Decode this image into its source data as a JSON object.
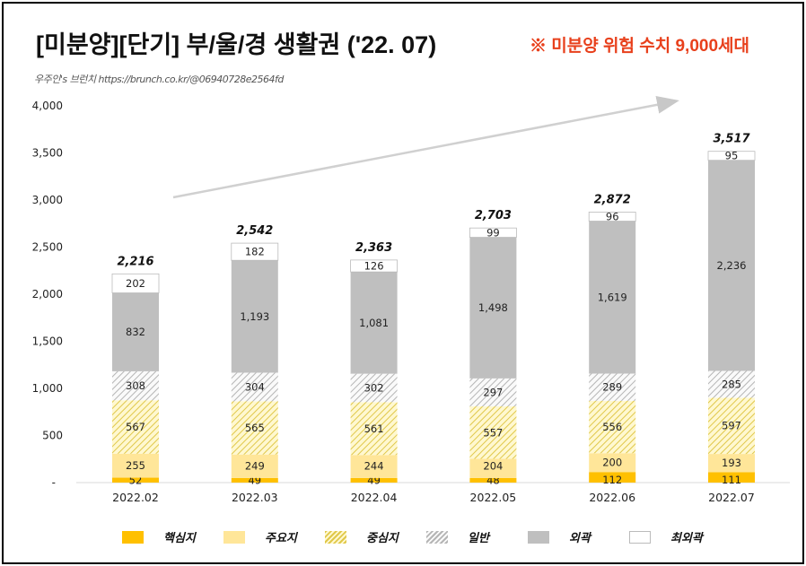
{
  "title": "[미분양][단기] 부/울/경 생활권 ('22. 07)",
  "note": "※ 미분양 위험 수치 9,000세대",
  "source": "우주인's 브런치 https://brunch.co.kr/@06940728e2564fd",
  "chart_data": {
    "type": "bar",
    "stacked": true,
    "categories": [
      "2022.02",
      "2022.03",
      "2022.04",
      "2022.05",
      "2022.06",
      "2022.07"
    ],
    "series": [
      {
        "name": "핵심지",
        "values": [
          52,
          49,
          49,
          48,
          112,
          111
        ],
        "color": "#ffc000",
        "pattern": "solid"
      },
      {
        "name": "주요지",
        "values": [
          255,
          249,
          244,
          204,
          200,
          193
        ],
        "color": "#ffe699",
        "pattern": "solid"
      },
      {
        "name": "중심지",
        "values": [
          567,
          565,
          561,
          557,
          556,
          597
        ],
        "color": "#e6d25a",
        "pattern": "hatch"
      },
      {
        "name": "일반",
        "values": [
          308,
          304,
          302,
          297,
          289,
          285
        ],
        "color": "#bfbfbf",
        "pattern": "hatch"
      },
      {
        "name": "외곽",
        "values": [
          832,
          1193,
          1081,
          1498,
          1619,
          2236
        ],
        "color": "#bfbfbf",
        "pattern": "solid"
      },
      {
        "name": "최외곽",
        "values": [
          202,
          182,
          126,
          99,
          96,
          95
        ],
        "color": "#ffffff",
        "pattern": "solid"
      }
    ],
    "totals": [
      2216,
      2542,
      2363,
      2703,
      2872,
      3517
    ],
    "ylim": [
      0,
      4000
    ],
    "yticks": [
      0,
      500,
      1000,
      1500,
      2000,
      2500,
      3000,
      3500,
      4000
    ],
    "ytick_labels": [
      "-",
      "500",
      "1,000",
      "1,500",
      "2,000",
      "2,500",
      "3,000",
      "3,500",
      "4,000"
    ],
    "grid": false,
    "legend": "bottom",
    "trend_arrow": true
  }
}
